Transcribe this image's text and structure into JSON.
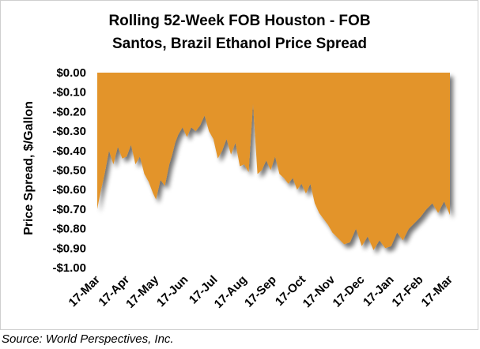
{
  "chart_data": {
    "type": "area",
    "title_lines": [
      "Rolling 52-Week FOB Houston - FOB",
      "Santos, Brazil Ethanol Price Spread"
    ],
    "xlabel": "",
    "ylabel": "Price Spread, $/Gallon",
    "ylim": [
      -1.0,
      0.0
    ],
    "yticks": [
      0.0,
      -0.1,
      -0.2,
      -0.3,
      -0.4,
      -0.5,
      -0.6,
      -0.7,
      -0.8,
      -0.9,
      -1.0
    ],
    "ytick_labels": [
      "$0.00",
      "-$0.10",
      "-$0.20",
      "-$0.30",
      "-$0.40",
      "-$0.50",
      "-$0.60",
      "-$0.70",
      "-$0.80",
      "-$0.90",
      "-$1.00"
    ],
    "xtick_labels": [
      "17-Mar",
      "17-Apr",
      "17-May",
      "17-Jun",
      "17-Jul",
      "17-Aug",
      "17-Sep",
      "17-Oct",
      "17-Nov",
      "17-Dec",
      "17-Jan",
      "17-Feb",
      "17-Mar"
    ],
    "grid": false,
    "legend": "none",
    "fill_color": "#E3942A",
    "x": [
      0,
      0.1,
      0.25,
      0.4,
      0.55,
      0.7,
      0.85,
      1.0,
      1.15,
      1.3,
      1.45,
      1.6,
      1.75,
      1.9,
      2.0,
      2.15,
      2.3,
      2.45,
      2.55,
      2.65,
      2.75,
      2.9,
      3.05,
      3.2,
      3.35,
      3.5,
      3.65,
      3.8,
      3.95,
      4.1,
      4.25,
      4.4,
      4.55,
      4.7,
      4.85,
      5.0,
      5.15,
      5.3,
      5.45,
      5.6,
      5.75,
      5.9,
      6.05,
      6.2,
      6.35,
      6.5,
      6.65,
      6.8,
      6.95,
      7.1,
      7.25,
      7.4,
      7.55,
      7.7,
      7.85,
      8.0,
      8.2,
      8.4,
      8.6,
      8.8,
      9.0,
      9.2,
      9.4,
      9.6,
      9.8,
      10.0,
      10.2,
      10.4,
      10.6,
      10.8,
      11.0,
      11.2,
      11.4,
      11.6,
      11.8,
      12.0
    ],
    "values": [
      -0.7,
      -0.62,
      -0.52,
      -0.4,
      -0.47,
      -0.38,
      -0.44,
      -0.43,
      -0.37,
      -0.47,
      -0.43,
      -0.52,
      -0.56,
      -0.62,
      -0.65,
      -0.55,
      -0.58,
      -0.47,
      -0.42,
      -0.36,
      -0.32,
      -0.28,
      -0.33,
      -0.28,
      -0.3,
      -0.27,
      -0.22,
      -0.3,
      -0.34,
      -0.44,
      -0.4,
      -0.34,
      -0.42,
      -0.36,
      -0.48,
      -0.47,
      -0.51,
      -0.16,
      -0.52,
      -0.5,
      -0.45,
      -0.5,
      -0.43,
      -0.52,
      -0.54,
      -0.57,
      -0.54,
      -0.6,
      -0.57,
      -0.62,
      -0.57,
      -0.67,
      -0.72,
      -0.75,
      -0.78,
      -0.82,
      -0.85,
      -0.88,
      -0.87,
      -0.8,
      -0.89,
      -0.84,
      -0.91,
      -0.86,
      -0.9,
      -0.89,
      -0.82,
      -0.86,
      -0.8,
      -0.77,
      -0.74,
      -0.7,
      -0.67,
      -0.72,
      -0.66,
      -0.73
    ]
  },
  "source": "Source: World Perspectives, Inc."
}
